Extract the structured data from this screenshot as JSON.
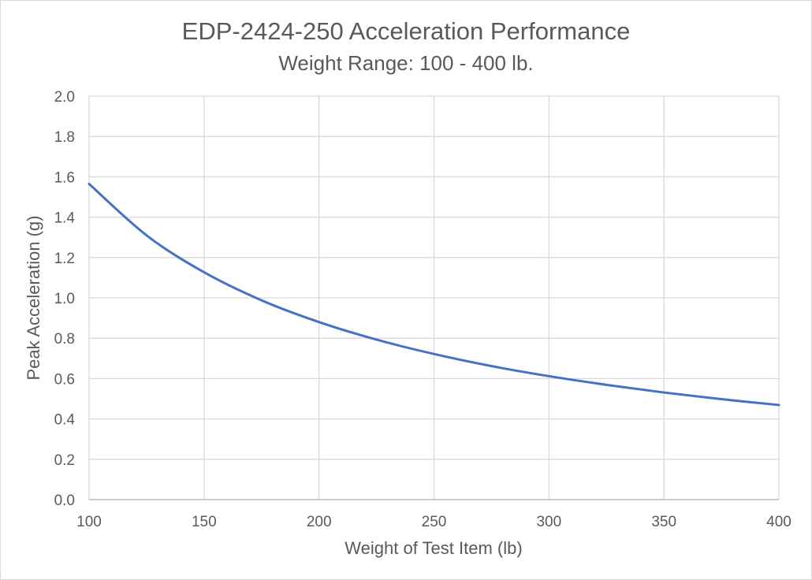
{
  "chart_data": {
    "type": "line",
    "title": "EDP-2424-250 Acceleration Performance",
    "subtitle": "Weight Range: 100 - 400 lb.",
    "xlabel": "Weight of Test Item  (lb)",
    "ylabel": "Peak Acceleration (g)",
    "xlim": [
      100,
      400
    ],
    "ylim": [
      0,
      2.0
    ],
    "xticks": [
      "100",
      "150",
      "200",
      "250",
      "300",
      "350",
      "400"
    ],
    "yticks": [
      "0.0",
      "0.2",
      "0.4",
      "0.6",
      "0.8",
      "1.0",
      "1.2",
      "1.4",
      "1.6",
      "1.8",
      "2.0"
    ],
    "grid": true,
    "legend": "none",
    "series": [
      {
        "color": "#4472c4",
        "x": [
          100,
          125,
          150,
          175,
          200,
          225,
          250,
          275,
          300,
          325,
          350,
          375,
          400
        ],
        "y": [
          1.565,
          1.31,
          1.127,
          0.988,
          0.88,
          0.793,
          0.722,
          0.662,
          0.612,
          0.569,
          0.531,
          0.498,
          0.469
        ]
      }
    ]
  }
}
